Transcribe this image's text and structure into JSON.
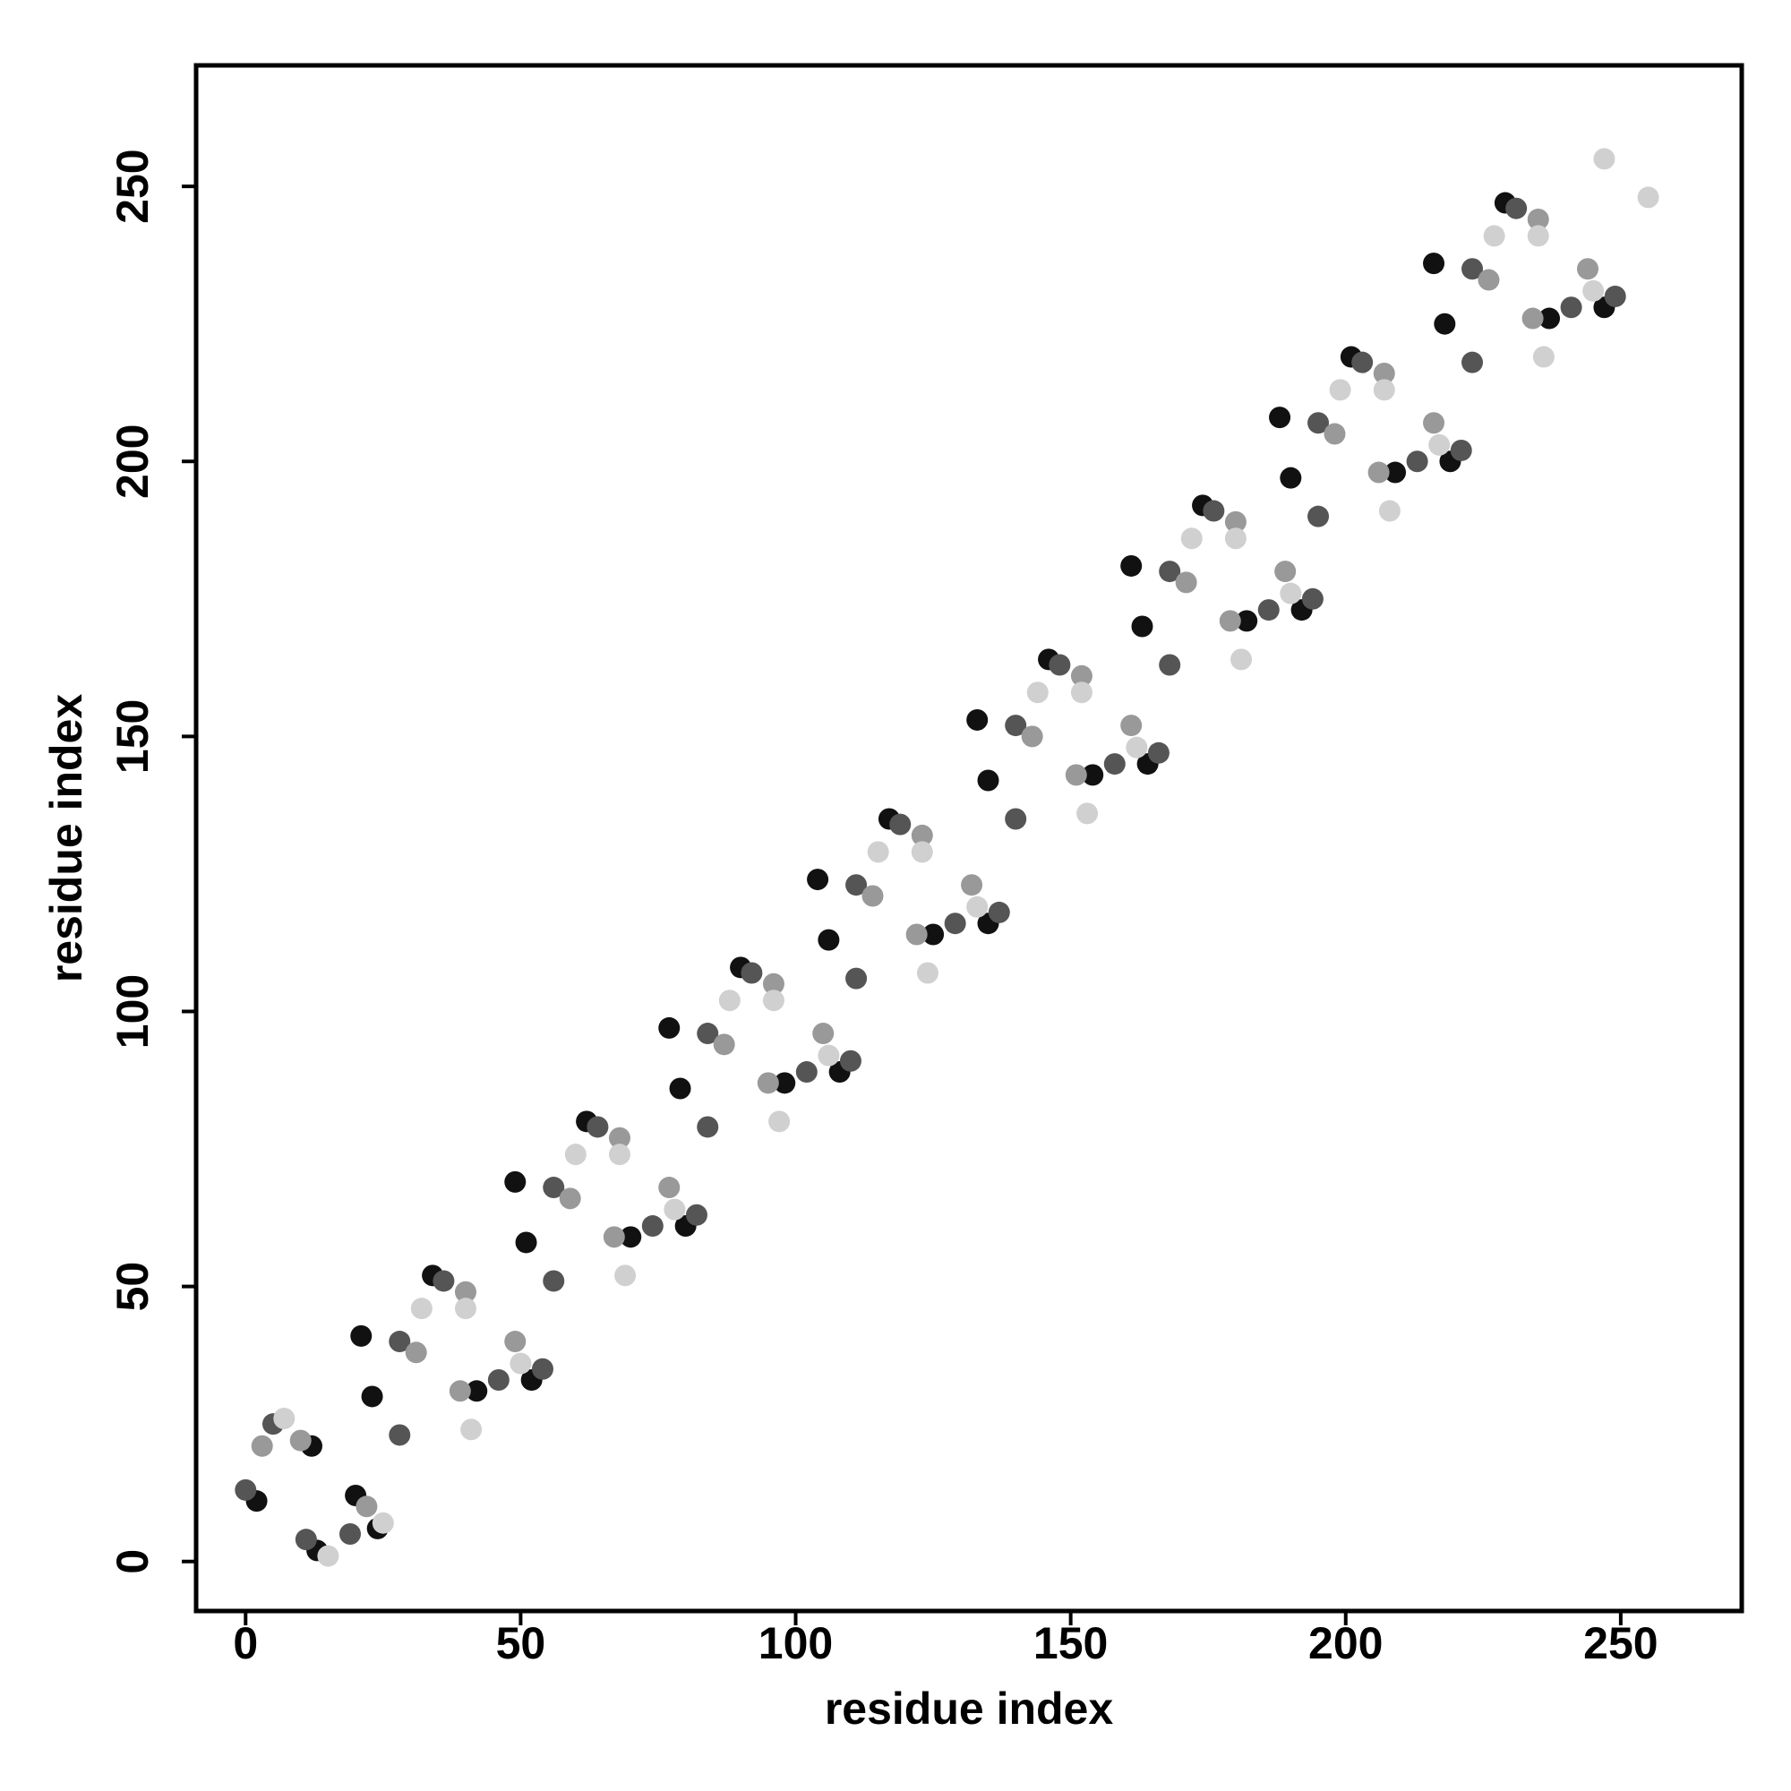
{
  "chart_data": {
    "type": "scatter",
    "x_label": "residue index",
    "y_label": "residue index",
    "xlim": [
      -9,
      272
    ],
    "ylim": [
      -9,
      272
    ],
    "xticks": [
      0,
      50,
      100,
      150,
      200,
      250
    ],
    "yticks": [
      0,
      50,
      100,
      150,
      200,
      250
    ],
    "grid": false,
    "series": [
      {
        "color": "#111111",
        "x": [
          2,
          12,
          13,
          20,
          24,
          21,
          34,
          23,
          42,
          52,
          49,
          62,
          51,
          70,
          80,
          77,
          90,
          79,
          98,
          108,
          104,
          117,
          106,
          125,
          135,
          133,
          146,
          135,
          154,
          164,
          161,
          174,
          163,
          182,
          192,
          188,
          201,
          190,
          209,
          219,
          216,
          229,
          218,
          237,
          247
        ],
        "y": [
          11,
          21,
          2,
          12,
          6,
          41,
          52,
          30,
          31,
          33,
          69,
          80,
          58,
          59,
          61,
          97,
          108,
          86,
          87,
          89,
          124,
          135,
          113,
          114,
          116,
          153,
          164,
          142,
          143,
          145,
          181,
          192,
          170,
          171,
          173,
          208,
          219,
          197,
          198,
          200,
          236,
          247,
          225,
          226,
          228
        ]
      },
      {
        "color": "#555555",
        "x": [
          0,
          5,
          11,
          19,
          28,
          36,
          28,
          46,
          54,
          56,
          64,
          56,
          74,
          82,
          84,
          92,
          84,
          102,
          110,
          111,
          119,
          111,
          129,
          137,
          140,
          148,
          140,
          158,
          166,
          168,
          176,
          168,
          186,
          194,
          195,
          203,
          195,
          213,
          221,
          223,
          231,
          223,
          241,
          249
        ],
        "y": [
          13,
          25,
          4,
          5,
          40,
          51,
          23,
          33,
          35,
          68,
          79,
          51,
          61,
          63,
          96,
          107,
          79,
          89,
          91,
          123,
          134,
          106,
          116,
          118,
          152,
          163,
          135,
          145,
          147,
          180,
          191,
          163,
          173,
          175,
          207,
          218,
          190,
          200,
          202,
          235,
          246,
          218,
          228,
          230
        ]
      },
      {
        "color": "#999999",
        "x": [
          3,
          10,
          22,
          31,
          40,
          39,
          49,
          59,
          68,
          67,
          77,
          87,
          96,
          95,
          105,
          114,
          123,
          122,
          132,
          143,
          152,
          151,
          161,
          171,
          180,
          179,
          189,
          198,
          207,
          206,
          216,
          226,
          235,
          234,
          244
        ],
        "y": [
          21,
          22,
          10,
          38,
          49,
          31,
          40,
          66,
          77,
          59,
          68,
          94,
          105,
          87,
          96,
          121,
          132,
          114,
          123,
          150,
          161,
          143,
          152,
          178,
          189,
          171,
          180,
          205,
          216,
          198,
          207,
          233,
          244,
          226,
          235
        ]
      },
      {
        "color": "#d0d0d0",
        "x": [
          7,
          15,
          25,
          32,
          40,
          41,
          50,
          60,
          68,
          69,
          78,
          88,
          96,
          97,
          106,
          115,
          123,
          124,
          133,
          144,
          152,
          153,
          162,
          172,
          180,
          181,
          190,
          199,
          207,
          208,
          217,
          227,
          235,
          236,
          245,
          247,
          255
        ],
        "y": [
          26,
          1,
          7,
          46,
          46,
          24,
          36,
          74,
          74,
          52,
          64,
          102,
          102,
          80,
          92,
          129,
          129,
          107,
          119,
          158,
          158,
          136,
          148,
          186,
          186,
          164,
          176,
          213,
          213,
          191,
          203,
          241,
          241,
          219,
          231,
          255,
          248
        ]
      }
    ]
  }
}
